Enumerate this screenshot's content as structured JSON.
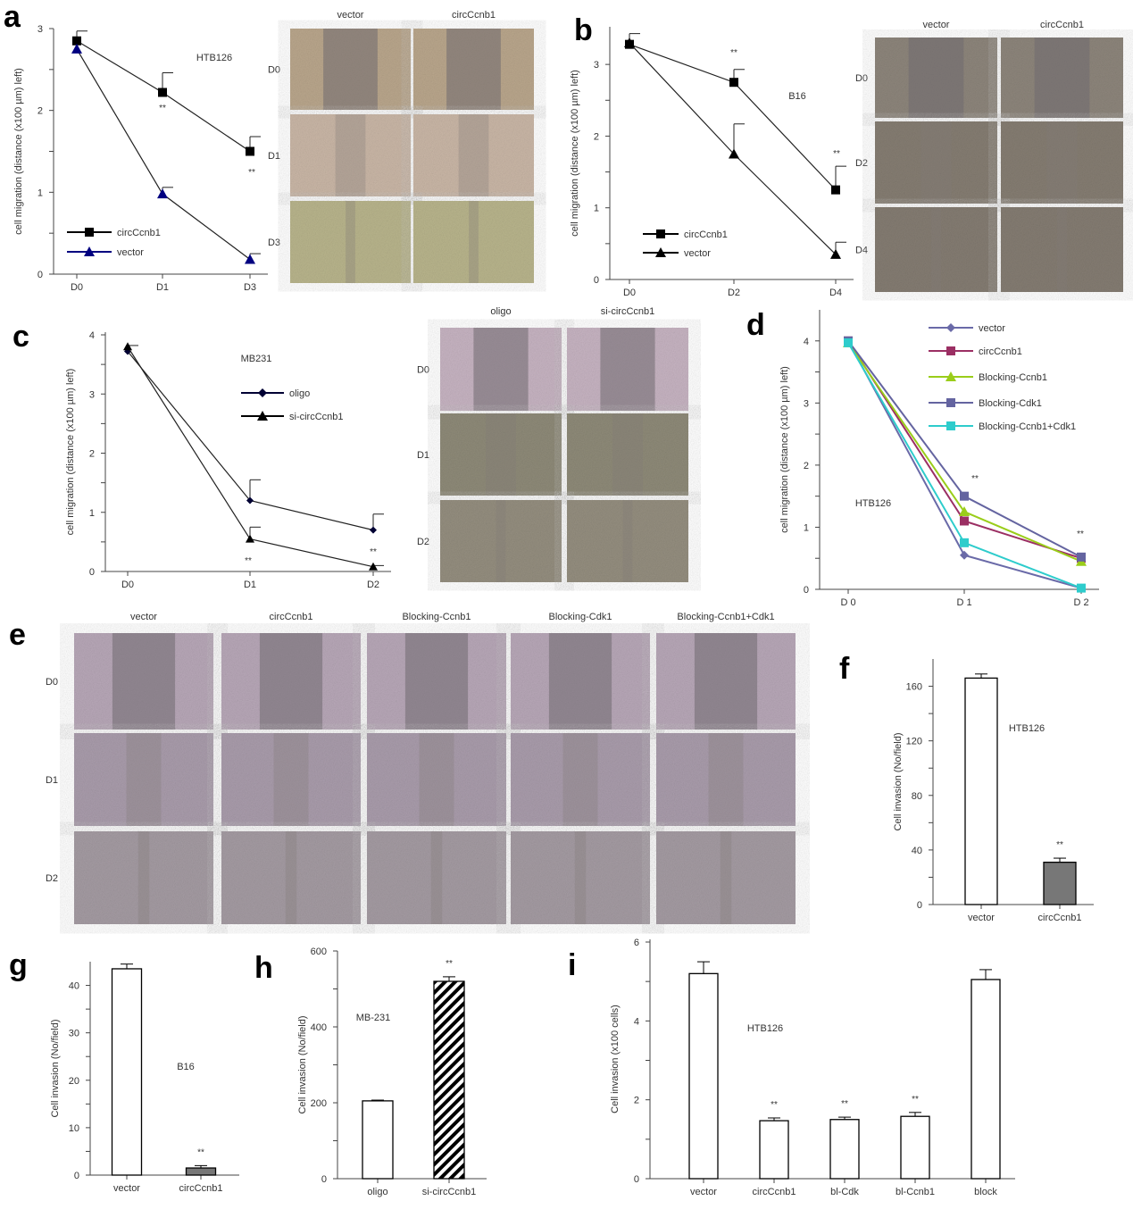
{
  "panel_letters": [
    "a",
    "b",
    "c",
    "d",
    "e",
    "f",
    "g",
    "h",
    "i"
  ],
  "chart_data": [
    {
      "id": "a",
      "type": "line",
      "annotation": "HTB126",
      "ylabel": "cell migration (distance (x100 µm) left)",
      "categories": [
        "D0",
        "D1",
        "D3"
      ],
      "ylim": [
        0,
        3
      ],
      "yticks": [
        0,
        1,
        2,
        3
      ],
      "legend": "bottom-left",
      "series": [
        {
          "name": "circCcnb1",
          "marker": "square",
          "color": "#000000",
          "values": [
            2.85,
            2.22,
            1.5
          ],
          "err": [
            0.12,
            0.24,
            0.18
          ]
        },
        {
          "name": "vector",
          "marker": "triangle",
          "color": "#000080",
          "values": [
            2.75,
            0.98,
            0.18
          ],
          "err": [
            0,
            0.08,
            0.07
          ]
        }
      ],
      "significance": [
        {
          "x": "D1",
          "label": "**"
        },
        {
          "x": "D3",
          "label": "**"
        }
      ]
    },
    {
      "id": "b",
      "type": "line",
      "annotation": "B16",
      "ylabel": "cell migration (distance (x100 µm) left)",
      "categories": [
        "D0",
        "D2",
        "D4"
      ],
      "ylim": [
        0,
        3.5
      ],
      "yticks": [
        0,
        1,
        2,
        3
      ],
      "legend": "bottom-left",
      "series": [
        {
          "name": "circCcnb1",
          "marker": "square",
          "color": "#000000",
          "values": [
            3.28,
            2.75,
            1.25
          ],
          "err": [
            0.15,
            0.18,
            0.33
          ]
        },
        {
          "name": "vector",
          "marker": "triangle",
          "color": "#000000",
          "values": [
            3.3,
            1.75,
            0.35
          ],
          "err": [
            0,
            0.42,
            0.17
          ]
        }
      ],
      "significance": [
        {
          "x": "D2",
          "label": "**"
        },
        {
          "x": "D4",
          "label": "**"
        }
      ]
    },
    {
      "id": "c",
      "type": "line",
      "annotation": "MB231",
      "ylabel": "cell migration (distance (x100 µm) left)",
      "categories": [
        "D0",
        "D1",
        "D2"
      ],
      "ylim": [
        0,
        4
      ],
      "yticks": [
        0,
        1,
        2,
        3,
        4
      ],
      "legend": "top-right",
      "series": [
        {
          "name": "oligo",
          "marker": "diamond",
          "color": "#000033",
          "values": [
            3.72,
            1.2,
            0.7
          ],
          "err": [
            0.1,
            0.35,
            0.27
          ]
        },
        {
          "name": "si-circCcnb1",
          "marker": "triangle",
          "color": "#000000",
          "values": [
            3.8,
            0.55,
            0.08
          ],
          "err": [
            0,
            0.2,
            0.02
          ]
        }
      ],
      "significance": [
        {
          "x": "D1",
          "label": "**"
        },
        {
          "x": "D2",
          "label": "**"
        }
      ]
    },
    {
      "id": "d",
      "type": "line",
      "annotation": "HTB126",
      "ylabel": "cell migration (distance (x100 µm) left)",
      "categories": [
        "D 0",
        "D 1",
        "D 2"
      ],
      "ylim": [
        0,
        4.5
      ],
      "yticks": [
        0,
        1,
        2,
        3,
        4
      ],
      "legend": "top-right",
      "series": [
        {
          "name": "vector",
          "marker": "diamond",
          "color": "#6a6aa8",
          "values": [
            4.0,
            0.55,
            0.02
          ]
        },
        {
          "name": "circCcnb1",
          "marker": "square",
          "color": "#9b2f63",
          "values": [
            4.0,
            1.1,
            0.5
          ]
        },
        {
          "name": "Blocking-Ccnb1",
          "marker": "triangle",
          "color": "#9acd1a",
          "values": [
            3.97,
            1.25,
            0.45
          ]
        },
        {
          "name": "Blocking-Cdk1",
          "marker": "square",
          "color": "#6464a0",
          "values": [
            4.0,
            1.5,
            0.52
          ]
        },
        {
          "name": "Blocking-Ccnb1+Cdk1",
          "marker": "square",
          "color": "#2ecccc",
          "values": [
            3.97,
            0.75,
            0.02
          ]
        }
      ],
      "significance": [
        {
          "x": "D 1",
          "label": "**"
        },
        {
          "x": "D 2",
          "label": "**"
        }
      ]
    },
    {
      "id": "f",
      "type": "bar",
      "annotation": "HTB126",
      "ylabel": "Cell invasion (No/field)",
      "categories": [
        "vector",
        "circCcnb1"
      ],
      "values": [
        166,
        31
      ],
      "err": [
        3,
        3
      ],
      "fills": [
        "#ffffff",
        "#777777"
      ],
      "ylim": [
        0,
        180
      ],
      "yticks": [
        0,
        40,
        80,
        120,
        160
      ],
      "significance": [
        {
          "x": "circCcnb1",
          "label": "**"
        }
      ]
    },
    {
      "id": "g",
      "type": "bar",
      "annotation": "B16",
      "ylabel": "Cell invasion (No/field)",
      "categories": [
        "vector",
        "circCcnb1"
      ],
      "values": [
        43.5,
        1.5
      ],
      "err": [
        1,
        0.5
      ],
      "fills": [
        "#ffffff",
        "#777777"
      ],
      "ylim": [
        0,
        45
      ],
      "yticks": [
        0,
        10,
        20,
        30,
        40
      ],
      "significance": [
        {
          "x": "circCcnb1",
          "label": "**"
        }
      ]
    },
    {
      "id": "h",
      "type": "bar",
      "annotation": "MB-231",
      "ylabel": "Cell invasion (No/field)",
      "categories": [
        "oligo",
        "si-circCcnb1"
      ],
      "values": [
        205,
        520
      ],
      "err": [
        2,
        12
      ],
      "fills": [
        "#ffffff",
        "hatch"
      ],
      "ylim": [
        0,
        600
      ],
      "yticks": [
        0,
        200,
        400,
        600
      ],
      "significance": [
        {
          "x": "si-circCcnb1",
          "label": "**"
        }
      ]
    },
    {
      "id": "i",
      "type": "bar",
      "annotation": "HTB126",
      "ylabel": "Cell invasion (x100 cells)",
      "categories": [
        "vector",
        "circCcnb1",
        "bl-Cdk",
        "bl-Ccnb1",
        "block"
      ],
      "values": [
        5.2,
        1.47,
        1.5,
        1.58,
        5.05
      ],
      "err": [
        0.3,
        0.07,
        0.06,
        0.1,
        0.25
      ],
      "fills": [
        "#ffffff",
        "#ffffff",
        "#ffffff",
        "#ffffff",
        "#ffffff"
      ],
      "ylim": [
        0,
        6
      ],
      "yticks": [
        0,
        2,
        4,
        6
      ],
      "significance": [
        {
          "x": "circCcnb1",
          "label": "**"
        },
        {
          "x": "bl-Cdk",
          "label": "**"
        },
        {
          "x": "bl-Ccnb1",
          "label": "**"
        }
      ]
    }
  ],
  "micrographs": [
    {
      "id": "a",
      "columns": [
        "vector",
        "circCcnb1"
      ],
      "rows": [
        "D0",
        "D1",
        "D3"
      ],
      "colors": [
        "#b9a68c",
        "#c9b6a6",
        "#b8b48c"
      ]
    },
    {
      "id": "b",
      "columns": [
        "vector",
        "circCcnb1"
      ],
      "rows": [
        "D0",
        "D2",
        "D4"
      ],
      "colors": [
        "#8d857b",
        "#857d72",
        "#847c72"
      ]
    },
    {
      "id": "c",
      "columns": [
        "oligo",
        "si-circCcnb1"
      ],
      "rows": [
        "D0",
        "D1",
        "D2"
      ],
      "colors": [
        "#c6b3c1",
        "#8e8a78",
        "#948e7f"
      ]
    },
    {
      "id": "e",
      "columns": [
        "vector",
        "circCcnb1",
        "Blocking-Ccnb1",
        "Blocking-Cdk1",
        "Blocking-Ccnb1+Cdk1"
      ],
      "rows": [
        "D0",
        "D1",
        "D2"
      ],
      "colors": [
        "#b7a7b7",
        "#a99cab",
        "#a49ba2"
      ]
    }
  ]
}
